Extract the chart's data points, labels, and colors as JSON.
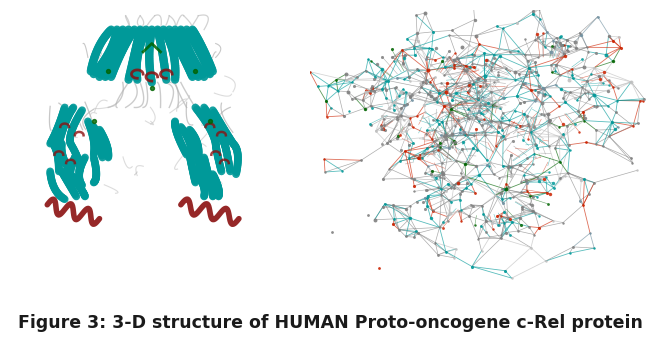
{
  "caption": "Figure 3: 3-D structure of HUMAN Proto-oncogene c-Rel protein",
  "caption_fontsize": 12.5,
  "caption_color": "#1a1a1a",
  "background_color": "#ffffff",
  "fig_width": 6.6,
  "fig_height": 3.39
}
